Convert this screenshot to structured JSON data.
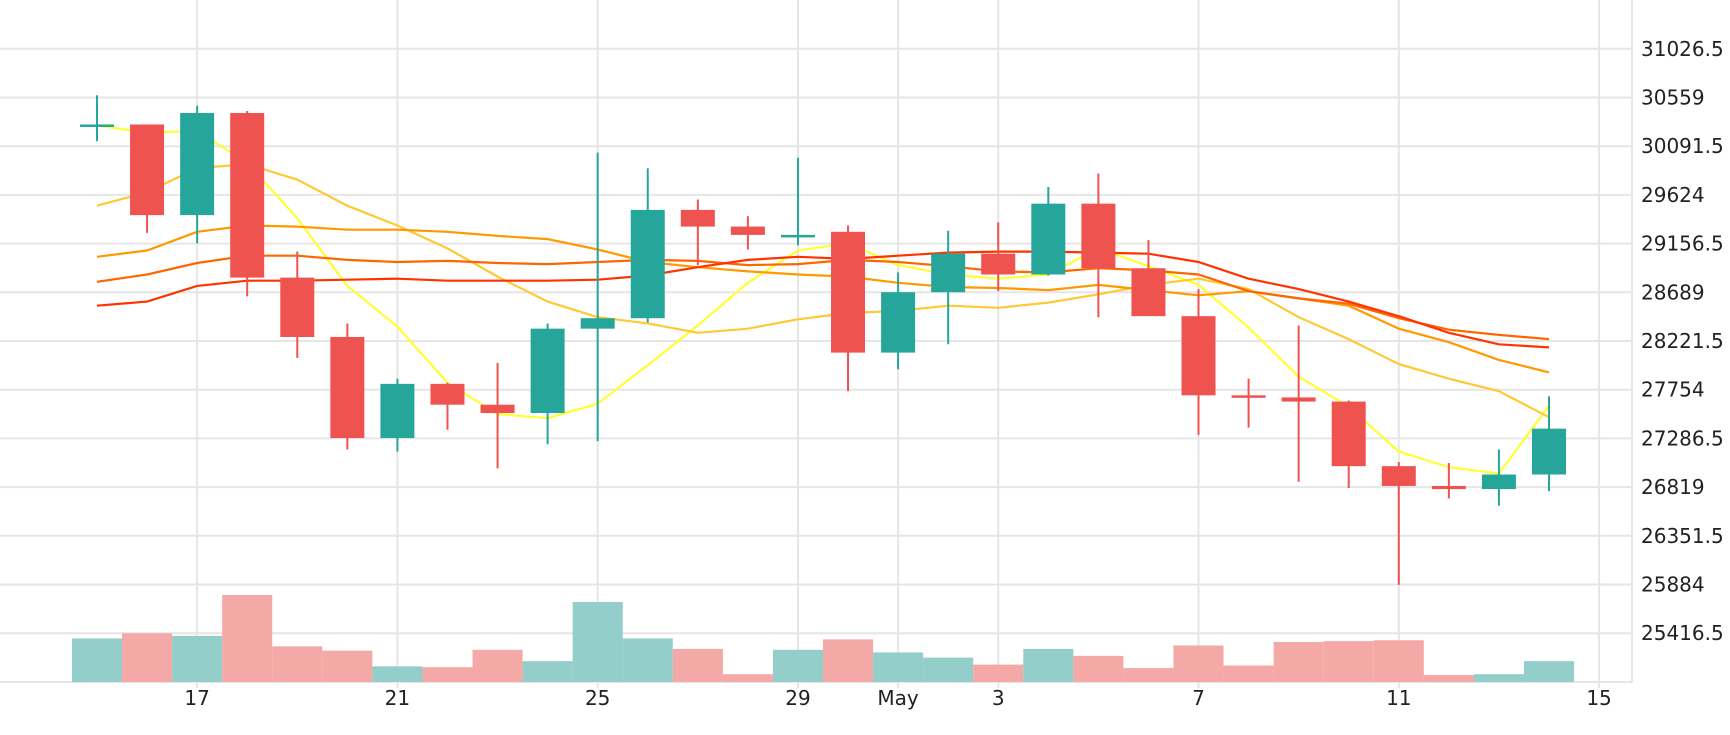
{
  "chart_data": {
    "type": "candlestick",
    "title": "",
    "xlabel": "",
    "ylabel": "",
    "ylim": [
      24948,
      31495
    ],
    "grid": true,
    "y_ticks": [
      "31026.5",
      "30559",
      "30091.5",
      "29624",
      "29156.5",
      "28689",
      "28221.5",
      "27754",
      "27286.5",
      "26819",
      "26351.5",
      "25884",
      "25416.5"
    ],
    "x_tick_labels": [
      {
        "day": 17,
        "label": "17"
      },
      {
        "day": 21,
        "label": "21"
      },
      {
        "day": 25,
        "label": "25"
      },
      {
        "day": 29,
        "label": "29"
      },
      {
        "day": 31,
        "label": "May"
      },
      {
        "day": 33,
        "label": "3"
      },
      {
        "day": 37,
        "label": "7"
      },
      {
        "day": 41,
        "label": "11"
      },
      {
        "day": 45,
        "label": "15"
      }
    ],
    "colors": {
      "up": "#26a69a",
      "down": "#ef5350",
      "volume_up": "#93cecb",
      "volume_down": "#f5a9a6",
      "grid": "#e6e6e6",
      "ma": [
        "#ffff33",
        "#ffc933",
        "#ff9900",
        "#ff6600",
        "#ff3300"
      ]
    },
    "candles": [
      {
        "day": 15,
        "open": 30300,
        "high": 30580,
        "low": 30140,
        "close": 30300,
        "volume": 0.5
      },
      {
        "day": 16,
        "open": 30300,
        "high": 30300,
        "low": 29260,
        "close": 29430,
        "volume": 0.56
      },
      {
        "day": 17,
        "open": 29430,
        "high": 30480,
        "low": 29160,
        "close": 30410,
        "volume": 0.53
      },
      {
        "day": 18,
        "open": 30410,
        "high": 30430,
        "low": 28650,
        "close": 28830,
        "volume": 1.0
      },
      {
        "day": 19,
        "open": 28830,
        "high": 29080,
        "low": 28060,
        "close": 28260,
        "volume": 0.41
      },
      {
        "day": 20,
        "open": 28260,
        "high": 28390,
        "low": 27180,
        "close": 27290,
        "volume": 0.36
      },
      {
        "day": 21,
        "open": 27290,
        "high": 27860,
        "low": 27160,
        "close": 27810,
        "volume": 0.18
      },
      {
        "day": 22,
        "open": 27810,
        "high": 27820,
        "low": 27370,
        "close": 27610,
        "volume": 0.17
      },
      {
        "day": 23,
        "open": 27610,
        "high": 28010,
        "low": 27000,
        "close": 27530,
        "volume": 0.37
      },
      {
        "day": 24,
        "open": 27530,
        "high": 28390,
        "low": 27230,
        "close": 28340,
        "volume": 0.24
      },
      {
        "day": 25,
        "open": 28340,
        "high": 30030,
        "low": 27260,
        "close": 28440,
        "volume": 0.92
      },
      {
        "day": 26,
        "open": 28440,
        "high": 29880,
        "low": 28400,
        "close": 29480,
        "volume": 0.5
      },
      {
        "day": 27,
        "open": 29480,
        "high": 29580,
        "low": 28950,
        "close": 29320,
        "volume": 0.38
      },
      {
        "day": 28,
        "open": 29320,
        "high": 29420,
        "low": 29100,
        "close": 29240,
        "volume": 0.09
      },
      {
        "day": 29,
        "open": 29240,
        "high": 29980,
        "low": 29140,
        "close": 29240,
        "volume": 0.37
      },
      {
        "day": 30,
        "open": 29270,
        "high": 29330,
        "low": 27740,
        "close": 28110,
        "volume": 0.49
      },
      {
        "day": 31,
        "open": 28110,
        "high": 28880,
        "low": 27950,
        "close": 28690,
        "volume": 0.34
      },
      {
        "day": 32,
        "open": 28690,
        "high": 29280,
        "low": 28190,
        "close": 29060,
        "volume": 0.28
      },
      {
        "day": 33,
        "open": 29060,
        "high": 29360,
        "low": 28700,
        "close": 28860,
        "volume": 0.2
      },
      {
        "day": 34,
        "open": 28860,
        "high": 29700,
        "low": 28850,
        "close": 29540,
        "volume": 0.38
      },
      {
        "day": 35,
        "open": 29540,
        "high": 29830,
        "low": 28450,
        "close": 28920,
        "volume": 0.3
      },
      {
        "day": 36,
        "open": 28920,
        "high": 29190,
        "low": 28470,
        "close": 28460,
        "volume": 0.16
      },
      {
        "day": 37,
        "open": 28460,
        "high": 28720,
        "low": 27320,
        "close": 27700,
        "volume": 0.42
      },
      {
        "day": 38,
        "open": 27700,
        "high": 27860,
        "low": 27390,
        "close": 27680,
        "volume": 0.19
      },
      {
        "day": 39,
        "open": 27680,
        "high": 28370,
        "low": 26870,
        "close": 27640,
        "volume": 0.46
      },
      {
        "day": 40,
        "open": 27640,
        "high": 27650,
        "low": 26810,
        "close": 27020,
        "volume": 0.47
      },
      {
        "day": 41,
        "open": 27020,
        "high": 27060,
        "low": 25880,
        "close": 26830,
        "volume": 0.48
      },
      {
        "day": 42,
        "open": 26830,
        "high": 27050,
        "low": 26710,
        "close": 26800,
        "volume": 0.08
      },
      {
        "day": 43,
        "open": 26800,
        "high": 27180,
        "low": 26640,
        "close": 26940,
        "volume": 0.09
      },
      {
        "day": 44,
        "open": 26940,
        "high": 27690,
        "low": 26780,
        "close": 27380,
        "volume": 0.24
      }
    ],
    "moving_averages": [
      {
        "color": "#ffff33",
        "points": [
          [
            15,
            30290
          ],
          [
            16,
            30220
          ],
          [
            17,
            30240
          ],
          [
            18,
            29930
          ],
          [
            19,
            29400
          ],
          [
            20,
            28750
          ],
          [
            21,
            28360
          ],
          [
            22,
            27820
          ],
          [
            23,
            27520
          ],
          [
            24,
            27480
          ],
          [
            25,
            27620
          ],
          [
            26,
            27990
          ],
          [
            27,
            28370
          ],
          [
            28,
            28780
          ],
          [
            29,
            29090
          ],
          [
            30,
            29160
          ],
          [
            31,
            28950
          ],
          [
            32,
            28860
          ],
          [
            33,
            28820
          ],
          [
            34,
            28860
          ],
          [
            35,
            29110
          ],
          [
            36,
            28940
          ],
          [
            37,
            28760
          ],
          [
            38,
            28350
          ],
          [
            39,
            27880
          ],
          [
            40,
            27590
          ],
          [
            41,
            27160
          ],
          [
            42,
            27010
          ],
          [
            43,
            26950
          ],
          [
            44,
            27600
          ]
        ]
      },
      {
        "color": "#ffc933",
        "points": [
          [
            15,
            29520
          ],
          [
            16,
            29650
          ],
          [
            17,
            29880
          ],
          [
            18,
            29920
          ],
          [
            19,
            29770
          ],
          [
            20,
            29520
          ],
          [
            21,
            29330
          ],
          [
            22,
            29110
          ],
          [
            23,
            28840
          ],
          [
            24,
            28600
          ],
          [
            25,
            28450
          ],
          [
            26,
            28390
          ],
          [
            27,
            28300
          ],
          [
            28,
            28340
          ],
          [
            29,
            28430
          ],
          [
            30,
            28490
          ],
          [
            31,
            28510
          ],
          [
            32,
            28560
          ],
          [
            33,
            28540
          ],
          [
            34,
            28590
          ],
          [
            35,
            28670
          ],
          [
            36,
            28760
          ],
          [
            37,
            28820
          ],
          [
            38,
            28720
          ],
          [
            39,
            28450
          ],
          [
            40,
            28240
          ],
          [
            41,
            28000
          ],
          [
            42,
            27860
          ],
          [
            43,
            27740
          ],
          [
            44,
            27490
          ]
        ]
      },
      {
        "color": "#ff9900",
        "points": [
          [
            15,
            29030
          ],
          [
            16,
            29090
          ],
          [
            17,
            29270
          ],
          [
            18,
            29330
          ],
          [
            19,
            29320
          ],
          [
            20,
            29290
          ],
          [
            21,
            29290
          ],
          [
            22,
            29270
          ],
          [
            23,
            29230
          ],
          [
            24,
            29200
          ],
          [
            25,
            29100
          ],
          [
            26,
            28980
          ],
          [
            27,
            28930
          ],
          [
            28,
            28890
          ],
          [
            29,
            28860
          ],
          [
            30,
            28840
          ],
          [
            31,
            28780
          ],
          [
            32,
            28740
          ],
          [
            33,
            28730
          ],
          [
            34,
            28710
          ],
          [
            35,
            28760
          ],
          [
            36,
            28710
          ],
          [
            37,
            28660
          ],
          [
            38,
            28700
          ],
          [
            39,
            28630
          ],
          [
            40,
            28560
          ],
          [
            41,
            28340
          ],
          [
            42,
            28210
          ],
          [
            43,
            28040
          ],
          [
            44,
            27920
          ]
        ]
      },
      {
        "color": "#ff6600",
        "points": [
          [
            15,
            28790
          ],
          [
            16,
            28860
          ],
          [
            17,
            28970
          ],
          [
            18,
            29040
          ],
          [
            19,
            29040
          ],
          [
            20,
            29000
          ],
          [
            21,
            28980
          ],
          [
            22,
            28990
          ],
          [
            23,
            28970
          ],
          [
            24,
            28960
          ],
          [
            25,
            28980
          ],
          [
            26,
            29000
          ],
          [
            27,
            28990
          ],
          [
            28,
            28950
          ],
          [
            29,
            28960
          ],
          [
            30,
            29000
          ],
          [
            31,
            28980
          ],
          [
            32,
            28940
          ],
          [
            33,
            28890
          ],
          [
            34,
            28880
          ],
          [
            35,
            28920
          ],
          [
            36,
            28900
          ],
          [
            37,
            28860
          ],
          [
            38,
            28700
          ],
          [
            39,
            28630
          ],
          [
            40,
            28580
          ],
          [
            41,
            28440
          ],
          [
            42,
            28330
          ],
          [
            43,
            28280
          ],
          [
            44,
            28240
          ]
        ]
      },
      {
        "color": "#ff3300",
        "points": [
          [
            15,
            28560
          ],
          [
            16,
            28600
          ],
          [
            17,
            28750
          ],
          [
            18,
            28800
          ],
          [
            19,
            28800
          ],
          [
            20,
            28810
          ],
          [
            21,
            28820
          ],
          [
            22,
            28800
          ],
          [
            23,
            28800
          ],
          [
            24,
            28800
          ],
          [
            25,
            28810
          ],
          [
            26,
            28850
          ],
          [
            27,
            28930
          ],
          [
            28,
            29000
          ],
          [
            29,
            29030
          ],
          [
            30,
            29010
          ],
          [
            31,
            29040
          ],
          [
            32,
            29070
          ],
          [
            33,
            29080
          ],
          [
            34,
            29080
          ],
          [
            35,
            29070
          ],
          [
            36,
            29060
          ],
          [
            37,
            28980
          ],
          [
            38,
            28820
          ],
          [
            39,
            28720
          ],
          [
            40,
            28600
          ],
          [
            41,
            28460
          ],
          [
            42,
            28300
          ],
          [
            43,
            28190
          ],
          [
            44,
            28160
          ]
        ]
      }
    ]
  }
}
